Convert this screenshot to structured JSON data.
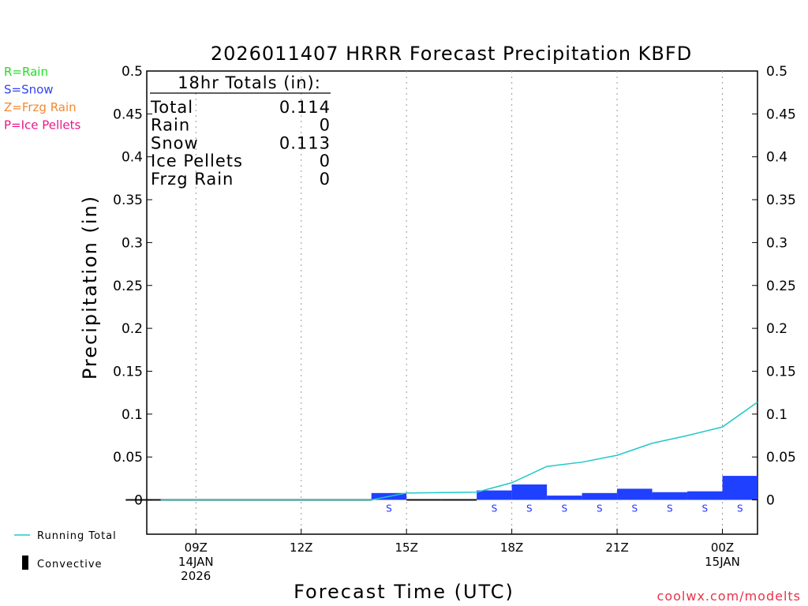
{
  "chart_data": {
    "type": "bar",
    "title": "2026011407 HRRR Forecast Precipitation KBFD",
    "xlabel": "Forecast Time (UTC)",
    "ylabel": "Precipitation (in)",
    "ylim": [
      -0.04,
      0.5
    ],
    "yticks": [
      {
        "value": 0.5,
        "label": "0.5"
      },
      {
        "value": 0.45,
        "label": "0.45"
      },
      {
        "value": 0.4,
        "label": "0.4"
      },
      {
        "value": 0.35,
        "label": "0.35"
      },
      {
        "value": 0.3,
        "label": "0.3"
      },
      {
        "value": 0.25,
        "label": "0.25"
      },
      {
        "value": 0.2,
        "label": "0.2"
      },
      {
        "value": 0.15,
        "label": "0.15"
      },
      {
        "value": 0.1,
        "label": "0.1"
      },
      {
        "value": 0.05,
        "label": "0.05"
      },
      {
        "value": 0,
        "label": "0"
      }
    ],
    "xlim_hours": [
      7.6,
      25
    ],
    "xticks": [
      {
        "hour": 9,
        "lines": [
          "09Z",
          "14JAN",
          "2026"
        ]
      },
      {
        "hour": 12,
        "lines": [
          "12Z"
        ]
      },
      {
        "hour": 15,
        "lines": [
          "15Z"
        ]
      },
      {
        "hour": 18,
        "lines": [
          "18Z"
        ]
      },
      {
        "hour": 21,
        "lines": [
          "21Z"
        ]
      },
      {
        "hour": 24,
        "lines": [
          "00Z",
          "15JAN"
        ]
      }
    ],
    "hours": [
      8,
      9,
      10,
      11,
      12,
      13,
      14,
      15,
      16,
      17,
      18,
      19,
      20,
      21,
      22,
      23,
      24,
      25
    ],
    "hourly_precip": [
      0,
      0,
      0,
      0,
      0,
      0,
      0,
      0.008,
      0,
      0,
      0.011,
      0.018,
      0.005,
      0.008,
      0.013,
      0.009,
      0.01,
      0.028
    ],
    "precip_type": [
      "",
      "",
      "",
      "",
      "",
      "",
      "",
      "S",
      "",
      "",
      "S",
      "S",
      "S",
      "S",
      "S",
      "S",
      "S",
      "S"
    ],
    "convective": [
      0,
      0,
      0,
      0,
      0,
      0,
      0,
      0,
      0,
      0,
      0,
      0,
      0,
      0,
      0,
      0,
      0,
      0
    ],
    "running_total": [
      0,
      0,
      0,
      0,
      0,
      0,
      0,
      0.008,
      0.0085,
      0.009,
      0.02,
      0.039,
      0.044,
      0.052,
      0.066,
      0.075,
      0.085,
      0.114
    ],
    "series": [
      {
        "name": "Hourly Precipitation",
        "color": "#2040ff"
      },
      {
        "name": "Running Total",
        "color": "#20c8c8"
      },
      {
        "name": "Convective",
        "color": "#000000"
      }
    ],
    "totals_box": {
      "header": "18hr Totals (in):",
      "rows": [
        {
          "label": "Total",
          "value": "0.114"
        },
        {
          "label": "Rain",
          "value": "0"
        },
        {
          "label": "Snow",
          "value": "0.113"
        },
        {
          "label": "Ice Pellets",
          "value": "0"
        },
        {
          "label": "Frzg Rain",
          "value": "0"
        }
      ]
    },
    "type_legend": [
      {
        "text": "R=Rain",
        "color": "#22dd22"
      },
      {
        "text": "S=Snow",
        "color": "#3344ee"
      },
      {
        "text": "Z=Frzg Rain",
        "color": "#f08a30"
      },
      {
        "text": "P=Ice Pellets",
        "color": "#e8188a"
      }
    ],
    "line_legend": "Running Total",
    "convective_legend": "Convective",
    "footer": "coolwx.com/modelts"
  }
}
